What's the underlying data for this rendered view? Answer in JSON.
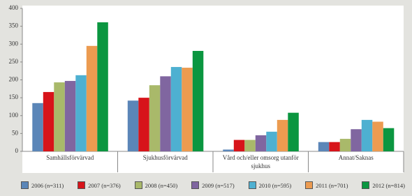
{
  "chart_data": {
    "type": "bar",
    "categories": [
      "Samhällsförvärvad",
      "Sjukhusförvärvad",
      "Vård och/eller omsorg utanför sjukhus",
      "Annat/Saknas"
    ],
    "series": [
      {
        "name": "2006 (n=311)",
        "color": "#5b86b8",
        "values": [
          135,
          142,
          5,
          26
        ]
      },
      {
        "name": "2007 (n=376)",
        "color": "#d7141a",
        "values": [
          166,
          150,
          32,
          26
        ]
      },
      {
        "name": "2008 (n=450)",
        "color": "#a9b96a",
        "values": [
          193,
          185,
          32,
          35
        ]
      },
      {
        "name": "2009 (n=517)",
        "color": "#8066a0",
        "values": [
          197,
          210,
          45,
          62
        ]
      },
      {
        "name": "2010 (n=595)",
        "color": "#4eb0d1",
        "values": [
          213,
          236,
          55,
          88
        ]
      },
      {
        "name": "2011 (n=701)",
        "color": "#ec9b50",
        "values": [
          295,
          234,
          88,
          83
        ]
      },
      {
        "name": "2012 (n=814)",
        "color": "#0b9640",
        "values": [
          361,
          281,
          108,
          65
        ]
      }
    ],
    "ylim": [
      0,
      400
    ],
    "yticks": [
      0,
      50,
      100,
      150,
      200,
      250,
      300,
      350,
      400
    ],
    "grid": false
  }
}
